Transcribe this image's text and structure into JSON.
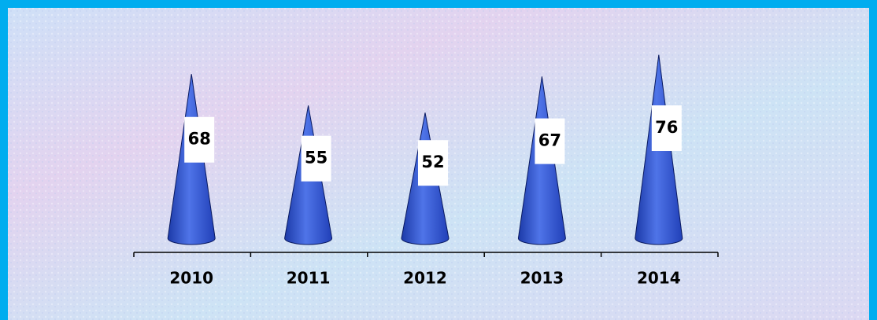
{
  "chart_data": {
    "type": "cone",
    "categories": [
      "2010",
      "2011",
      "2012",
      "2013",
      "2014"
    ],
    "values": [
      68,
      55,
      52,
      67,
      76
    ],
    "color": "#2f52d6"
  }
}
